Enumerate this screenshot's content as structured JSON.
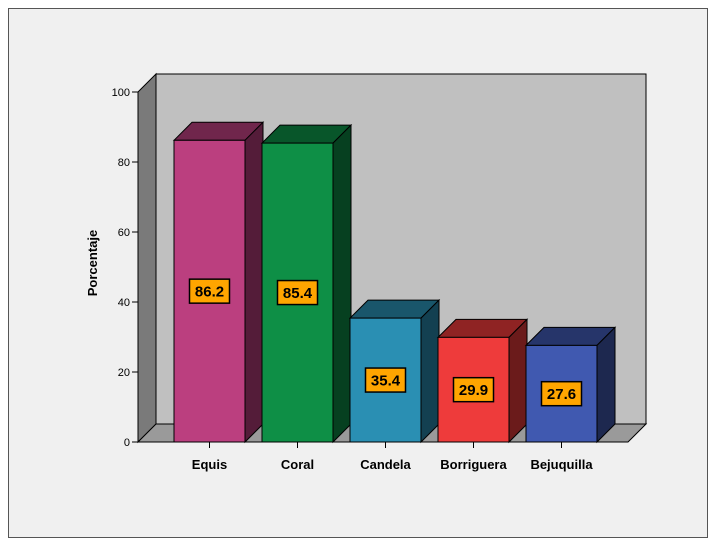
{
  "chart_data": {
    "type": "bar",
    "title": "",
    "xlabel": "",
    "ylabel": "Porcentaje",
    "ylim": [
      0,
      100
    ],
    "yticks": [
      0,
      20,
      40,
      60,
      80,
      100
    ],
    "grid": false,
    "style": "3d",
    "categories": [
      "Equis",
      "Coral",
      "Candela",
      "Borriguera",
      "Bejuquilla"
    ],
    "values": [
      86.2,
      85.4,
      35.4,
      29.9,
      27.6
    ],
    "value_labels": [
      "86.2",
      "85.4",
      "35.4",
      "29.9",
      "27.6"
    ],
    "colors": {
      "bars": [
        "#bb3f7f",
        "#0e8f46",
        "#2a8fb3",
        "#ee3b3b",
        "#4059b0"
      ],
      "wall": "#c0c0c0",
      "floor": "#9a9a9a",
      "label_box": "#ffa500",
      "background": "#f0f0f0"
    }
  }
}
